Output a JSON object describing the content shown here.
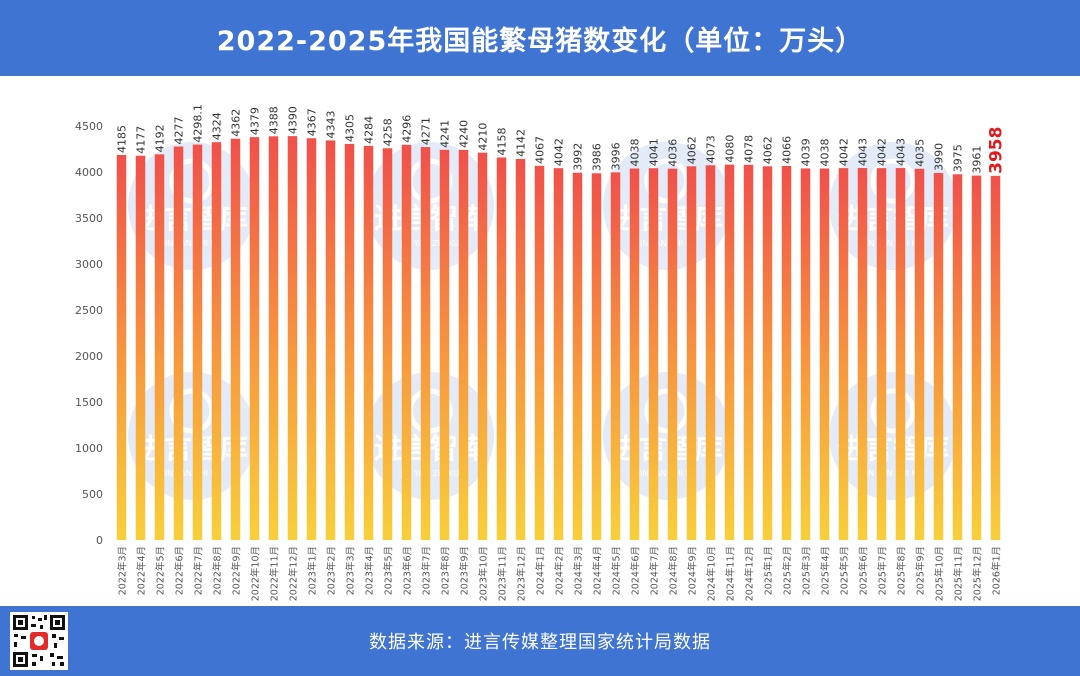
{
  "header": {
    "title": "2022-2025年我国能繁母猪数变化（单位：万头）"
  },
  "footer": {
    "source": "数据来源：进言传媒整理国家统计局数据"
  },
  "watermark": {
    "brand": "进言智库",
    "subtitle": "JIN YAN ZHI KU"
  },
  "colors": {
    "header_bg": "#3f74d2",
    "bar_top": "#f0504a",
    "bar_bottom": "#f8cf3a",
    "highlight_label": "#e31a1c",
    "label": "#333333"
  },
  "chart_data": {
    "type": "bar",
    "title": "2022-2025年我国能繁母猪数变化（单位：万头）",
    "ylim": [
      0,
      4500
    ],
    "yticks": [
      0,
      500,
      1000,
      1500,
      2000,
      2500,
      3000,
      3500,
      4000,
      4500
    ],
    "categories": [
      "2022年3月",
      "2022年4月",
      "2022年5月",
      "2022年6月",
      "2022年7月",
      "2022年8月",
      "2022年9月",
      "2022年10月",
      "2022年11月",
      "2022年12月",
      "2023年1月",
      "2023年2月",
      "2023年3月",
      "2023年4月",
      "2023年5月",
      "2023年6月",
      "2023年7月",
      "2023年8月",
      "2023年9月",
      "2023年10月",
      "2023年11月",
      "2023年12月",
      "2024年1月",
      "2024年2月",
      "2024年3月",
      "2024年4月",
      "2024年5月",
      "2024年6月",
      "2024年7月",
      "2024年8月",
      "2024年9月",
      "2024年10月",
      "2024年11月",
      "2024年12月",
      "2025年1月",
      "2025年2月",
      "2025年3月",
      "2025年4月",
      "2025年5月",
      "2025年6月",
      "2025年7月",
      "2025年8月",
      "2025年9月",
      "2025年10月",
      "2025年11月",
      "2025年12月",
      "2026年1月"
    ],
    "values": [
      4185,
      4177,
      4192,
      4277,
      4298.1,
      4324,
      4362,
      4379,
      4388,
      4390,
      4367,
      4343,
      4305,
      4284,
      4258,
      4296,
      4271,
      4241,
      4240,
      4210,
      4158,
      4142,
      4067,
      4042,
      3992,
      3986,
      3996,
      4038,
      4041,
      4036,
      4062,
      4073,
      4080,
      4078,
      4062,
      4066,
      4039,
      4038,
      4042,
      4043,
      4042,
      4043,
      4035,
      3990,
      3975,
      3961,
      3958
    ],
    "value_labels": [
      "4185",
      "4177",
      "4192",
      "4277",
      "4298.1",
      "4324",
      "4362",
      "4379",
      "4388",
      "4390",
      "4367",
      "4343",
      "4305",
      "4284",
      "4258",
      "4296",
      "4271",
      "4241",
      "4240",
      "4210",
      "4158",
      "4142",
      "4067",
      "4042",
      "3992",
      "3986",
      "3996",
      "4038",
      "4041",
      "4036",
      "4062",
      "4073",
      "4080",
      "4078",
      "4062",
      "4066",
      "4039",
      "4038",
      "4042",
      "4043",
      "4042",
      "4043",
      "4035",
      "3990",
      "3975",
      "3961",
      "3958"
    ],
    "highlight_index": 46
  }
}
